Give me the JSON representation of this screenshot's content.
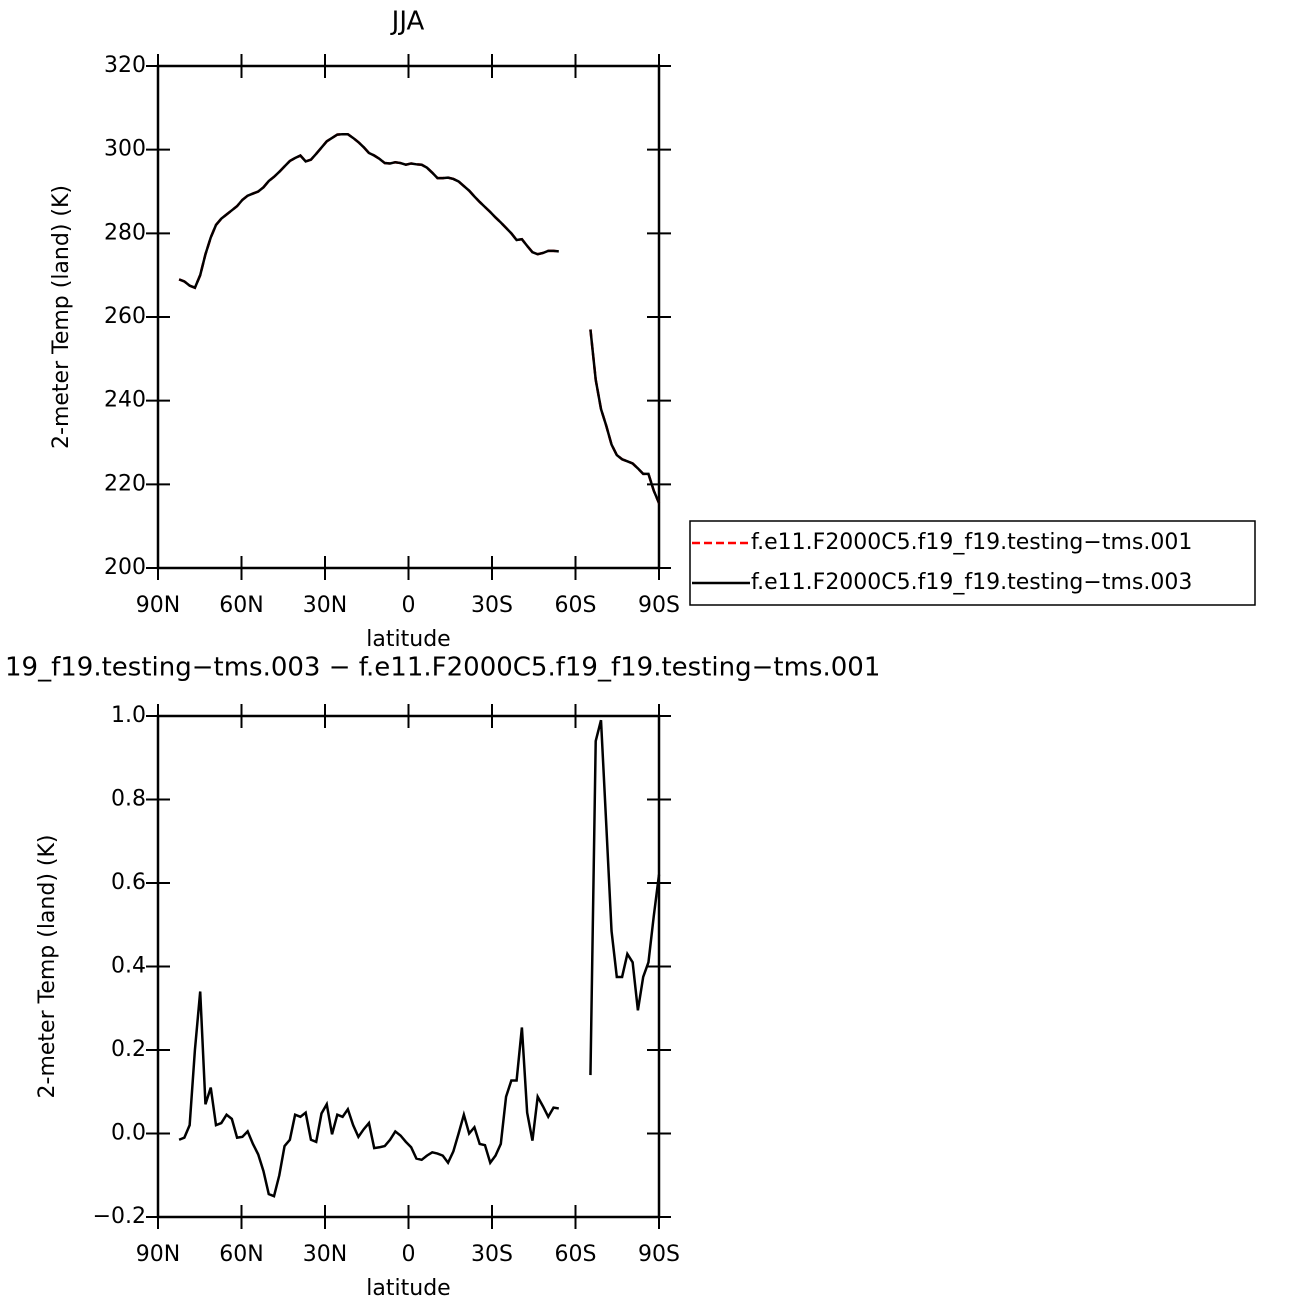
{
  "chart_data": [
    {
      "type": "line",
      "title": "JJA",
      "xlabel": "latitude",
      "ylabel": "2-meter Temp (land) (K)",
      "xlim": [
        90,
        -90
      ],
      "xticks": [
        {
          "value": 90,
          "label": "90N"
        },
        {
          "value": 60,
          "label": "60N"
        },
        {
          "value": 30,
          "label": "30N"
        },
        0,
        {
          "value": -30,
          "label": "30S"
        },
        {
          "value": -60,
          "label": "60S"
        },
        {
          "value": -90,
          "label": "90S"
        }
      ],
      "ylim": [
        200,
        320
      ],
      "yticks": [
        200,
        220,
        240,
        260,
        280,
        300,
        320
      ],
      "legend": "right",
      "x": [
        82.42,
        80.53,
        78.63,
        76.74,
        74.84,
        72.95,
        71.05,
        69.16,
        67.26,
        65.37,
        63.47,
        61.58,
        59.68,
        57.79,
        55.89,
        54.0,
        52.11,
        50.21,
        48.32,
        46.42,
        44.53,
        42.63,
        40.74,
        38.84,
        36.95,
        35.05,
        33.16,
        31.26,
        29.37,
        27.47,
        25.58,
        23.68,
        21.79,
        19.89,
        18.0,
        16.11,
        14.21,
        12.32,
        10.42,
        8.53,
        6.63,
        4.74,
        2.84,
        0.95,
        -0.95,
        -2.84,
        -4.74,
        -6.63,
        -8.53,
        -10.42,
        -12.32,
        -14.21,
        -16.11,
        -18.0,
        -19.89,
        -21.79,
        -23.68,
        -25.58,
        -27.47,
        -29.37,
        -31.26,
        -33.16,
        -35.05,
        -36.95,
        -38.84,
        -40.74,
        -42.63,
        -44.53,
        -46.42,
        -48.32,
        -50.21,
        -52.11,
        -54.0,
        -55.89,
        -57.79,
        -59.68,
        -61.58,
        -63.47,
        -65.37,
        -67.26,
        -69.16,
        -71.05,
        -72.95,
        -74.84,
        -76.74,
        -78.63,
        -80.53,
        -82.42,
        -84.32,
        -86.21,
        -88.11,
        -90.0
      ],
      "series": [
        {
          "name": "f.e11.F2000C5.f19_f19.testing−tms.001",
          "color": "#ff0000",
          "line_style": "dashed",
          "values": [
            269,
            268.5,
            267.5,
            267,
            270,
            275,
            279,
            282,
            283.5,
            284.5,
            285.5,
            286.5,
            288,
            289,
            289.5,
            290,
            291,
            292.5,
            293.5,
            294.7,
            296,
            297.3,
            298,
            298.6,
            297.2,
            297.6,
            299,
            300.5,
            302,
            302.8,
            303.6,
            303.7,
            303.7,
            302.8,
            301.8,
            300.6,
            299.2,
            298.6,
            297.8,
            296.8,
            296.7,
            297,
            296.8,
            296.4,
            296.7,
            296.5,
            296.4,
            295.7,
            294.5,
            293.2,
            293.2,
            293.3,
            293,
            292.4,
            291.3,
            290.2,
            288.8,
            287.5,
            286.3,
            285.1,
            283.8,
            282.6,
            281.3,
            280,
            278.4,
            278.6,
            277,
            275.5,
            275,
            275.3,
            275.8,
            275.8,
            275.7,
            null,
            null,
            null,
            null,
            null,
            257,
            245,
            238,
            234,
            229.5,
            227,
            226,
            225.5,
            225,
            223.8,
            222.5,
            222.5,
            218.5,
            215.5
          ]
        },
        {
          "name": "f.e11.F2000C5.f19_f19.testing−tms.003",
          "color": "#000000",
          "line_style": "solid",
          "values": [
            269,
            268.5,
            267.5,
            267,
            270,
            275,
            279,
            282,
            283.5,
            284.5,
            285.5,
            286.5,
            288,
            289,
            289.5,
            290,
            291,
            292.5,
            293.5,
            294.7,
            296,
            297.3,
            298,
            298.6,
            297.2,
            297.6,
            299,
            300.5,
            302,
            302.8,
            303.6,
            303.7,
            303.7,
            302.8,
            301.8,
            300.6,
            299.2,
            298.6,
            297.8,
            296.8,
            296.7,
            297,
            296.8,
            296.4,
            296.7,
            296.5,
            296.4,
            295.7,
            294.5,
            293.2,
            293.2,
            293.3,
            293,
            292.4,
            291.3,
            290.2,
            288.8,
            287.5,
            286.3,
            285.1,
            283.8,
            282.6,
            281.3,
            280,
            278.4,
            278.6,
            277,
            275.5,
            275,
            275.3,
            275.8,
            275.8,
            275.7,
            null,
            null,
            null,
            null,
            null,
            257,
            245,
            238,
            234,
            229.5,
            227,
            226,
            225.5,
            225,
            223.8,
            222.5,
            222.5,
            218.5,
            215.5
          ]
        }
      ]
    },
    {
      "type": "line",
      "title": "19_f19.testing−tms.003 − f.e11.F2000C5.f19_f19.testing−tms.001",
      "xlabel": "latitude",
      "ylabel": "2-meter Temp (land) (K)",
      "xlim": [
        90,
        -90
      ],
      "xticks": [
        {
          "value": 90,
          "label": "90N"
        },
        {
          "value": 60,
          "label": "60N"
        },
        {
          "value": 30,
          "label": "30N"
        },
        0,
        {
          "value": -30,
          "label": "30S"
        },
        {
          "value": -60,
          "label": "60S"
        },
        {
          "value": -90,
          "label": "90S"
        }
      ],
      "ylim": [
        -0.2,
        1.0
      ],
      "yticks": [
        {
          "value": -0.2,
          "label": "−0.2"
        },
        {
          "value": 0,
          "label": "0.0"
        },
        0.2,
        0.4,
        0.6,
        0.8,
        {
          "value": 1.0,
          "label": "1.0"
        }
      ],
      "color": "#000000",
      "line_style": "solid",
      "x": [
        82.42,
        80.53,
        78.63,
        76.74,
        74.84,
        72.95,
        71.05,
        69.16,
        67.26,
        65.37,
        63.47,
        61.58,
        59.68,
        57.79,
        55.89,
        54.0,
        52.11,
        50.21,
        48.32,
        46.42,
        44.53,
        42.63,
        40.74,
        38.84,
        36.95,
        35.05,
        33.16,
        31.26,
        29.37,
        27.47,
        25.58,
        23.68,
        21.79,
        19.89,
        18.0,
        16.11,
        14.21,
        12.32,
        10.42,
        8.53,
        6.63,
        4.74,
        2.84,
        0.95,
        -0.95,
        -2.84,
        -4.74,
        -6.63,
        -8.53,
        -10.42,
        -12.32,
        -14.21,
        -16.11,
        -18.0,
        -19.89,
        -21.79,
        -23.68,
        -25.58,
        -27.47,
        -29.37,
        -31.26,
        -33.16,
        -35.05,
        -36.95,
        -38.84,
        -40.74,
        -42.63,
        -44.53,
        -46.42,
        -48.32,
        -50.21,
        -52.11,
        -54.0,
        -55.89,
        -57.79,
        -59.68,
        -61.58,
        -63.47,
        -65.37,
        -67.26,
        -69.16,
        -71.05,
        -72.95,
        -74.84,
        -76.74,
        -78.63,
        -80.53,
        -82.42,
        -84.32,
        -86.21,
        -88.11,
        -90.0
      ],
      "values": [
        -0.015,
        -0.01,
        0.02,
        0.2,
        0.34,
        0.07,
        0.11,
        0.02,
        0.025,
        0.045,
        0.035,
        -0.01,
        -0.008,
        0.005,
        -0.025,
        -0.05,
        -0.09,
        -0.145,
        -0.15,
        -0.1,
        -0.03,
        -0.015,
        0.045,
        0.04,
        0.05,
        -0.015,
        -0.02,
        0.048,
        0.07,
        -0.002,
        0.045,
        0.04,
        0.058,
        0.02,
        -0.008,
        0.01,
        0.025,
        -0.035,
        -0.033,
        -0.03,
        -0.015,
        0.005,
        -0.005,
        -0.02,
        -0.033,
        -0.06,
        -0.063,
        -0.053,
        -0.045,
        -0.048,
        -0.053,
        -0.07,
        -0.043,
        0,
        0.045,
        0,
        0.015,
        -0.025,
        -0.028,
        -0.07,
        -0.053,
        -0.025,
        0.088,
        0.127,
        0.127,
        0.254,
        0.05,
        -0.017,
        0.088,
        0.065,
        0.04,
        0.062,
        0.06,
        null,
        null,
        null,
        null,
        null,
        0.14,
        0.94,
        0.99,
        0.74,
        0.485,
        0.375,
        0.375,
        0.43,
        0.41,
        0.295,
        0.375,
        0.41,
        0.52,
        0.62
      ]
    }
  ]
}
